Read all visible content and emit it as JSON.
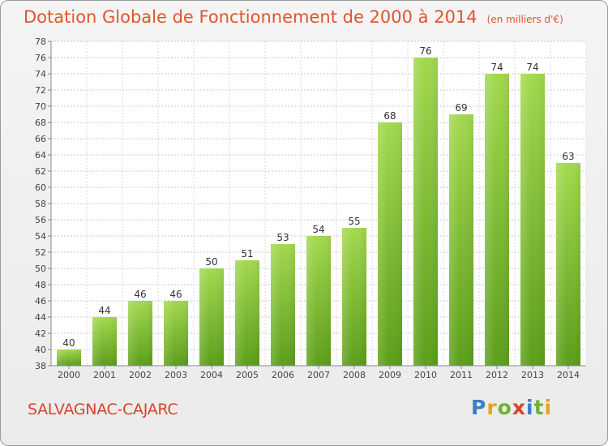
{
  "title": "Dotation Globale de Fonctionnement de 2000 à 2014",
  "unit_note": "(en milliers d'€)",
  "commune": "SALVAGNAC-CAJARC",
  "logo": {
    "letters": [
      "P",
      "r",
      "o",
      "x",
      "i",
      "t",
      "i"
    ],
    "colors": [
      "#3a7fc8",
      "#e8a21a",
      "#6fb23a",
      "#d9432b",
      "#3a7fc8",
      "#6fb23a",
      "#e8a21a"
    ]
  },
  "colors": {
    "bar": "#7fc23a",
    "title": "#e0552e",
    "commune": "#d9432b"
  },
  "chart_data": {
    "type": "bar",
    "title": "Dotation Globale de Fonctionnement de 2000 à 2014",
    "xlabel": "",
    "ylabel": "",
    "categories": [
      "2000",
      "2001",
      "2002",
      "2003",
      "2004",
      "2005",
      "2006",
      "2007",
      "2008",
      "2009",
      "2010",
      "2011",
      "2012",
      "2013",
      "2014"
    ],
    "values": [
      40,
      44,
      46,
      46,
      50,
      51,
      53,
      54,
      55,
      68,
      76,
      69,
      74,
      74,
      63
    ],
    "ylim": [
      38,
      78
    ],
    "yticks": [
      38,
      40,
      42,
      44,
      46,
      48,
      50,
      52,
      54,
      56,
      58,
      60,
      62,
      64,
      66,
      68,
      70,
      72,
      74,
      76,
      78
    ],
    "grid": "horizontal dotted",
    "data_labels": true
  }
}
